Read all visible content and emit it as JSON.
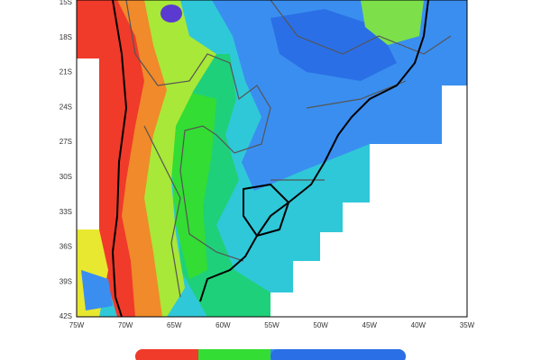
{
  "lat_labels": [
    "15S",
    "18S",
    "21S",
    "24S",
    "27S",
    "30S",
    "33S",
    "36S",
    "39S",
    "42S"
  ],
  "lon_labels": [
    "75W",
    "70W",
    "65W",
    "60W",
    "55W",
    "50W",
    "45W",
    "40W",
    "35W"
  ]
}
